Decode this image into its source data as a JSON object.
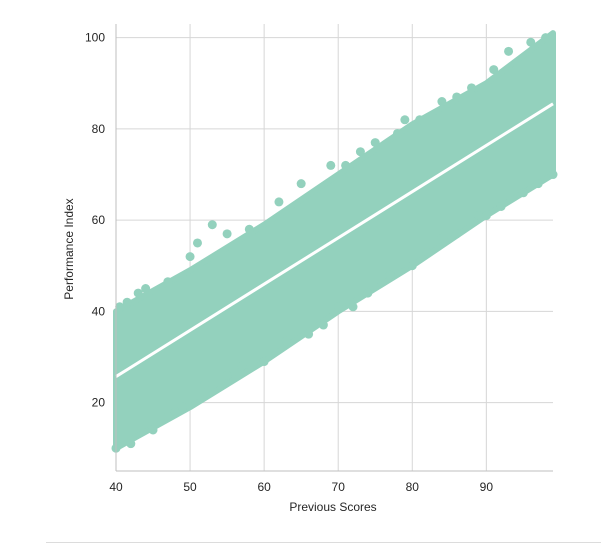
{
  "chart_data": {
    "type": "scatter",
    "title": "",
    "xlabel": "Previous Scores",
    "ylabel": "Performance Index",
    "xlim": [
      40,
      99
    ],
    "ylim": [
      5,
      103
    ],
    "xticks": [
      40,
      50,
      60,
      70,
      80,
      90
    ],
    "yticks": [
      20,
      40,
      60,
      80,
      100
    ],
    "grid": true,
    "point_color": "#93d1bd",
    "line_color": "#ffffff",
    "band_color": "#93d1bd",
    "regression_line": {
      "start": {
        "x": 40,
        "y": 25.7
      },
      "end": {
        "x": 99,
        "y": 85.5
      }
    },
    "point_band": {
      "lower": [
        {
          "x": 40,
          "y": 10
        },
        {
          "x": 50,
          "y": 19
        },
        {
          "x": 60,
          "y": 29
        },
        {
          "x": 70,
          "y": 40
        },
        {
          "x": 80,
          "y": 50
        },
        {
          "x": 90,
          "y": 61
        },
        {
          "x": 99,
          "y": 70
        }
      ],
      "upper": [
        {
          "x": 40,
          "y": 40
        },
        {
          "x": 50,
          "y": 49
        },
        {
          "x": 60,
          "y": 59
        },
        {
          "x": 70,
          "y": 70
        },
        {
          "x": 80,
          "y": 81
        },
        {
          "x": 90,
          "y": 90
        },
        {
          "x": 99,
          "y": 101
        }
      ]
    },
    "points": [
      {
        "x": 40,
        "y": 10
      },
      {
        "x": 40.5,
        "y": 41
      },
      {
        "x": 41.5,
        "y": 42
      },
      {
        "x": 42,
        "y": 11
      },
      {
        "x": 43,
        "y": 44
      },
      {
        "x": 44,
        "y": 45
      },
      {
        "x": 45,
        "y": 14
      },
      {
        "x": 47,
        "y": 17
      },
      {
        "x": 47,
        "y": 46.5
      },
      {
        "x": 48,
        "y": 18
      },
      {
        "x": 49,
        "y": 19
      },
      {
        "x": 50,
        "y": 52
      },
      {
        "x": 51,
        "y": 55
      },
      {
        "x": 52,
        "y": 24
      },
      {
        "x": 53,
        "y": 59
      },
      {
        "x": 55,
        "y": 26
      },
      {
        "x": 55,
        "y": 57
      },
      {
        "x": 57,
        "y": 28
      },
      {
        "x": 58,
        "y": 58
      },
      {
        "x": 60,
        "y": 29
      },
      {
        "x": 62,
        "y": 64
      },
      {
        "x": 63,
        "y": 33.5
      },
      {
        "x": 65,
        "y": 68
      },
      {
        "x": 66,
        "y": 35
      },
      {
        "x": 68,
        "y": 37
      },
      {
        "x": 69,
        "y": 72
      },
      {
        "x": 70,
        "y": 41
      },
      {
        "x": 71,
        "y": 72
      },
      {
        "x": 72,
        "y": 41
      },
      {
        "x": 73,
        "y": 75
      },
      {
        "x": 74,
        "y": 44
      },
      {
        "x": 75,
        "y": 77
      },
      {
        "x": 77,
        "y": 48
      },
      {
        "x": 78,
        "y": 79
      },
      {
        "x": 79,
        "y": 82
      },
      {
        "x": 80,
        "y": 50
      },
      {
        "x": 81,
        "y": 82
      },
      {
        "x": 82,
        "y": 53
      },
      {
        "x": 84,
        "y": 56
      },
      {
        "x": 84,
        "y": 86
      },
      {
        "x": 86,
        "y": 57
      },
      {
        "x": 86,
        "y": 87
      },
      {
        "x": 88,
        "y": 89
      },
      {
        "x": 89,
        "y": 61
      },
      {
        "x": 90,
        "y": 61
      },
      {
        "x": 91,
        "y": 93
      },
      {
        "x": 92,
        "y": 63
      },
      {
        "x": 93,
        "y": 97
      },
      {
        "x": 95,
        "y": 66
      },
      {
        "x": 96,
        "y": 99
      },
      {
        "x": 97,
        "y": 68
      },
      {
        "x": 98,
        "y": 100
      },
      {
        "x": 99,
        "y": 70
      }
    ]
  }
}
